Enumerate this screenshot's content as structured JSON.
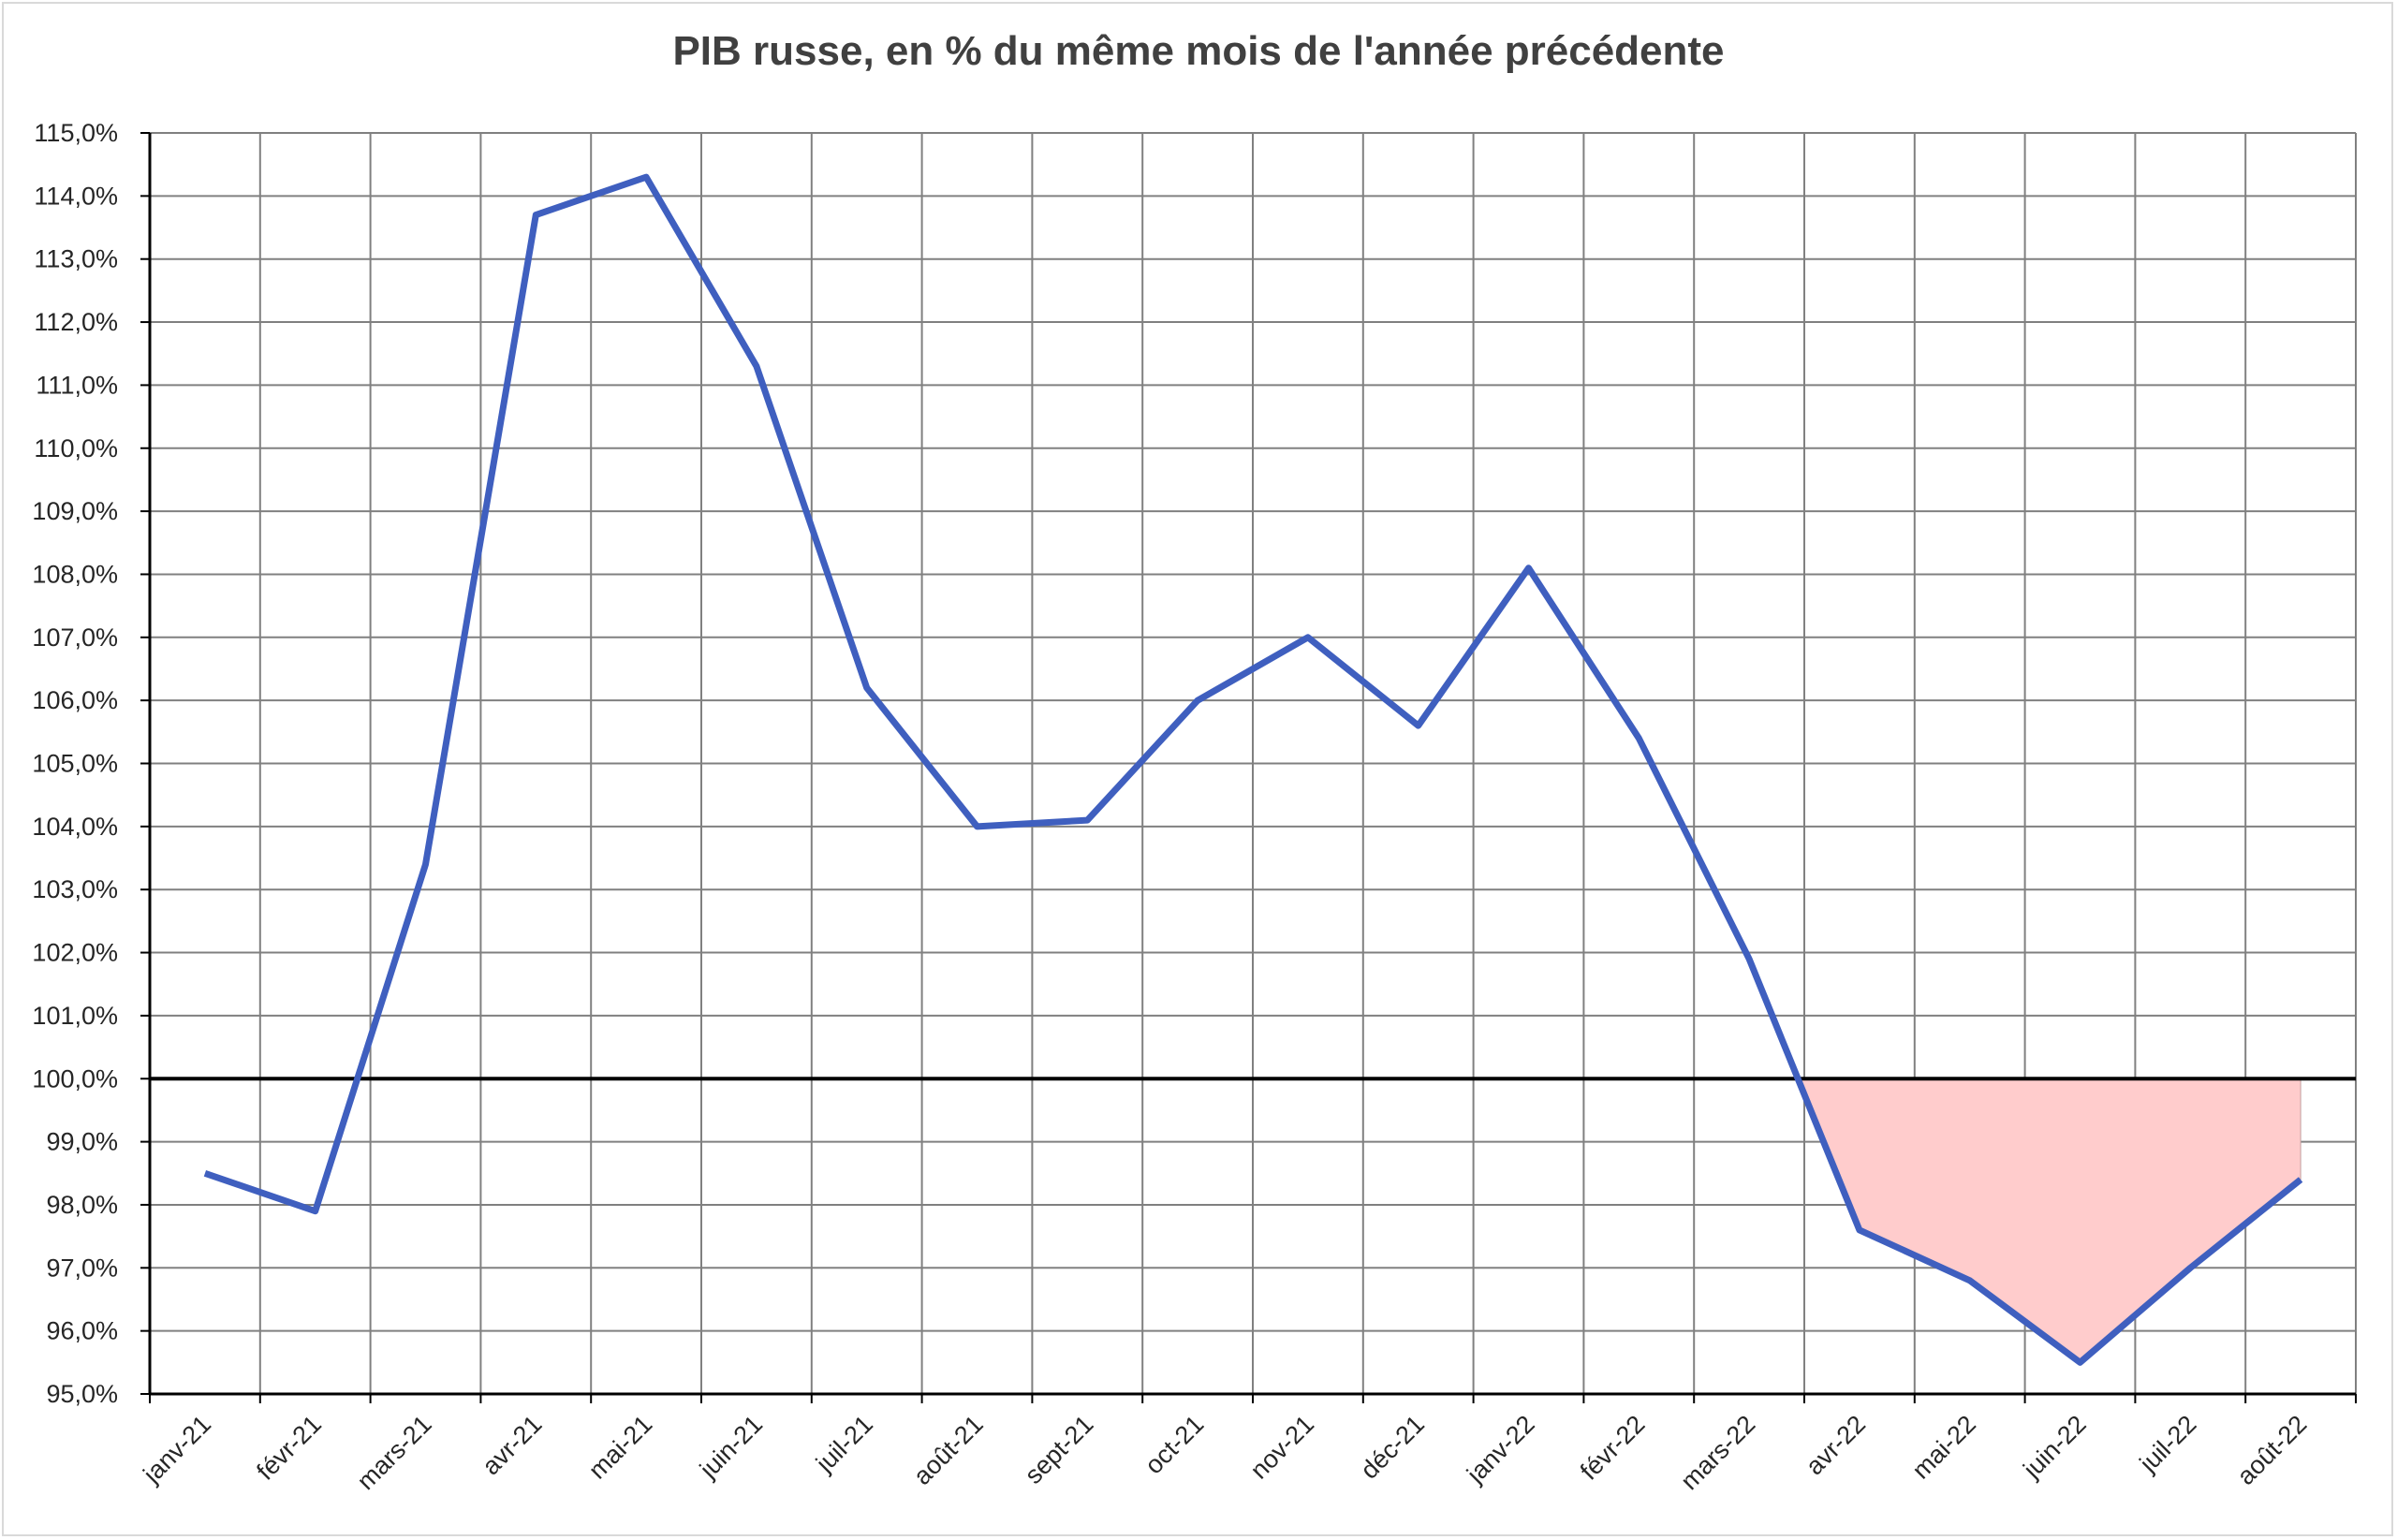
{
  "chart_data": {
    "type": "line",
    "title": "PIB russe, en % du même mois de l'année précédente",
    "categories": [
      "janv-21",
      "févr-21",
      "mars-21",
      "avr-21",
      "mai-21",
      "juin-21",
      "juil-21",
      "août-21",
      "sept-21",
      "oct-21",
      "nov-21",
      "déc-21",
      "janv-22",
      "févr-22",
      "mars-22",
      "avr-22",
      "mai-22",
      "juin-22",
      "juil-22",
      "août-22"
    ],
    "series": [
      {
        "values": [
          98.5,
          97.9,
          103.4,
          113.7,
          114.3,
          111.3,
          106.2,
          104.0,
          104.1,
          106.0,
          107.0,
          105.6,
          108.1,
          105.4,
          101.9,
          97.6,
          96.8,
          95.5,
          97.0,
          98.4
        ]
      }
    ],
    "ylim": [
      95,
      115
    ],
    "ytick_step": 1,
    "ytick_labels": [
      "95,0%",
      "96,0%",
      "97,0%",
      "98,0%",
      "99,0%",
      "100,0%",
      "101,0%",
      "102,0%",
      "103,0%",
      "104,0%",
      "105,0%",
      "106,0%",
      "107,0%",
      "108,0%",
      "109,0%",
      "110,0%",
      "111,0%",
      "112,0%",
      "113,0%",
      "114,0%",
      "115,0%"
    ],
    "reference_line": 100,
    "shaded_region": {
      "from_category": "mars-22",
      "to_category": "août-22",
      "below": 100
    },
    "grid": true,
    "colors": {
      "line": "#3f5fbf",
      "fill": "#ffcccc",
      "reference": "#000000",
      "grid": "#808080"
    }
  }
}
